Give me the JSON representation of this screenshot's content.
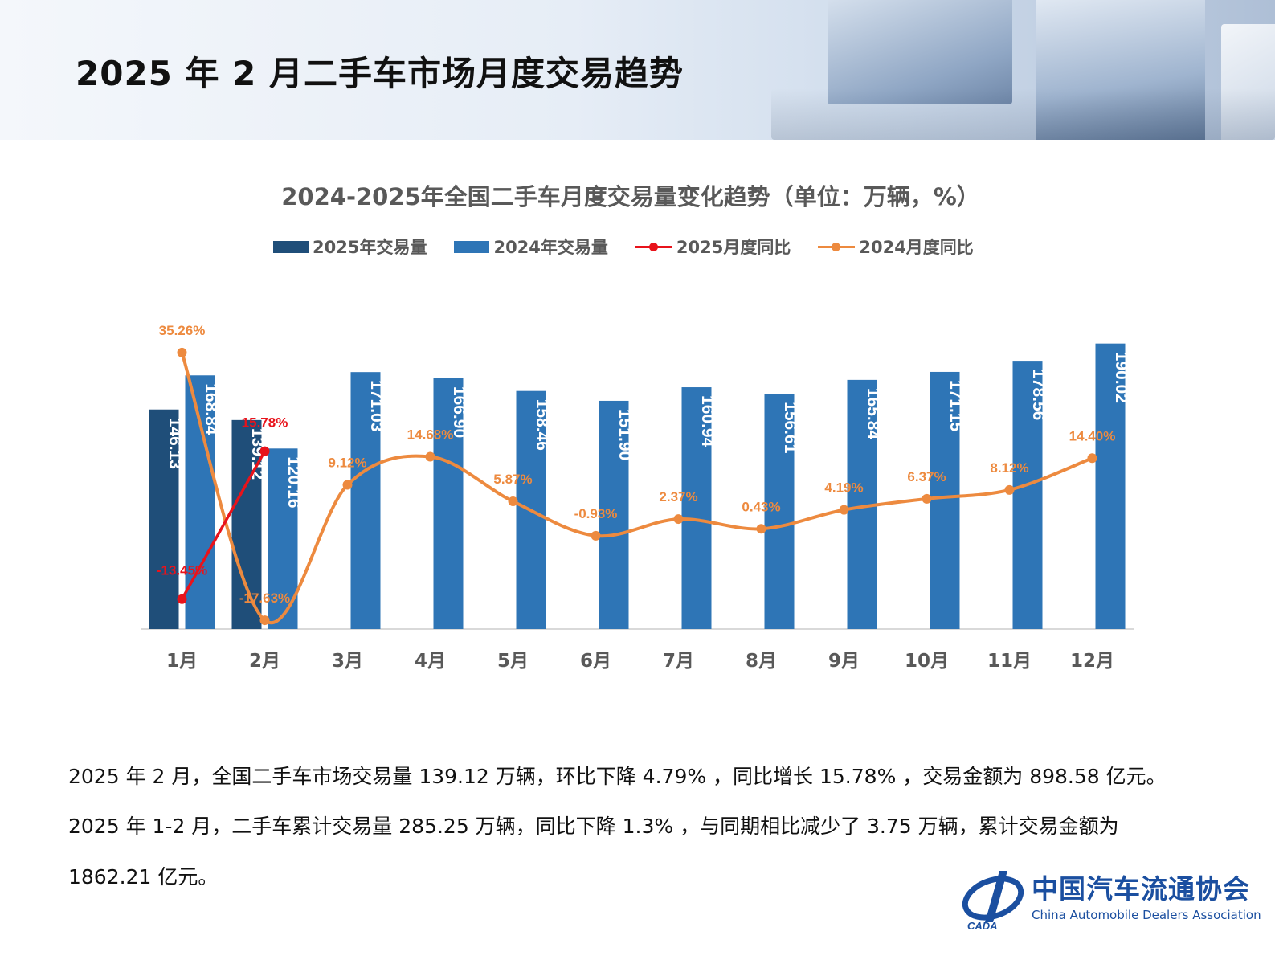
{
  "header": {
    "title": "2025 年 2 月二手车市场月度交易趋势"
  },
  "colors": {
    "bar_2025": "#1f4e79",
    "bar_2024": "#2e75b6",
    "line_2025": "#e8131b",
    "line_2024": "#ed8a3f",
    "axis_text": "#595959"
  },
  "chart_data": {
    "type": "bar",
    "title": "2024-2025年全国二手车月度交易量变化趋势（单位：万辆，%）",
    "categories": [
      "1月",
      "2月",
      "3月",
      "4月",
      "5月",
      "6月",
      "7月",
      "8月",
      "9月",
      "10月",
      "11月",
      "12月"
    ],
    "series": [
      {
        "name": "2025年交易量",
        "kind": "bar",
        "values": [
          146.13,
          139.12,
          null,
          null,
          null,
          null,
          null,
          null,
          null,
          null,
          null,
          null
        ],
        "labels": [
          "146.13",
          "139.12"
        ]
      },
      {
        "name": "2024年交易量",
        "kind": "bar",
        "values": [
          168.84,
          120.16,
          171.03,
          166.9,
          158.46,
          151.9,
          160.94,
          156.61,
          165.84,
          171.15,
          178.56,
          190.02
        ],
        "labels": [
          "168.84",
          "120.16",
          "171.03",
          "166.90",
          "158.46",
          "151.90",
          "160.94",
          "156.61",
          "165.84",
          "171.15",
          "178.56",
          "190.02"
        ]
      },
      {
        "name": "2025月度同比",
        "kind": "line",
        "values": [
          -13.45,
          15.78,
          null,
          null,
          null,
          null,
          null,
          null,
          null,
          null,
          null,
          null
        ],
        "labels": [
          "-13.45%",
          "15.78%"
        ]
      },
      {
        "name": "2024月度同比",
        "kind": "line",
        "values": [
          35.26,
          -17.63,
          9.12,
          14.68,
          5.87,
          -0.93,
          2.37,
          0.43,
          4.19,
          6.37,
          8.12,
          14.4
        ],
        "labels": [
          "35.26%",
          "-17.63%",
          "9.12%",
          "14.68%",
          "5.87%",
          "-0.93%",
          "2.37%",
          "0.43%",
          "4.19%",
          "6.37%",
          "8.12%",
          "14.40%"
        ]
      }
    ],
    "legend_position": "top",
    "grid": false
  },
  "text": {
    "para1": "2025 年 2 月，全国二手车市场交易量 139.12 万辆，环比下降 4.79% ，同比增长 15.78% ，交易金额为 898.58 亿元。",
    "para2": "2025 年 1-2 月，二手车累计交易量 285.25 万辆，同比下降 1.3% ，与同期相比减少了 3.75 万辆，累计交易金额为",
    "para3": "1862.21 亿元。"
  },
  "logo": {
    "name_cn": "中国汽车流通协会",
    "name_en": "China Automobile Dealers Association",
    "abbr": "CADA"
  }
}
